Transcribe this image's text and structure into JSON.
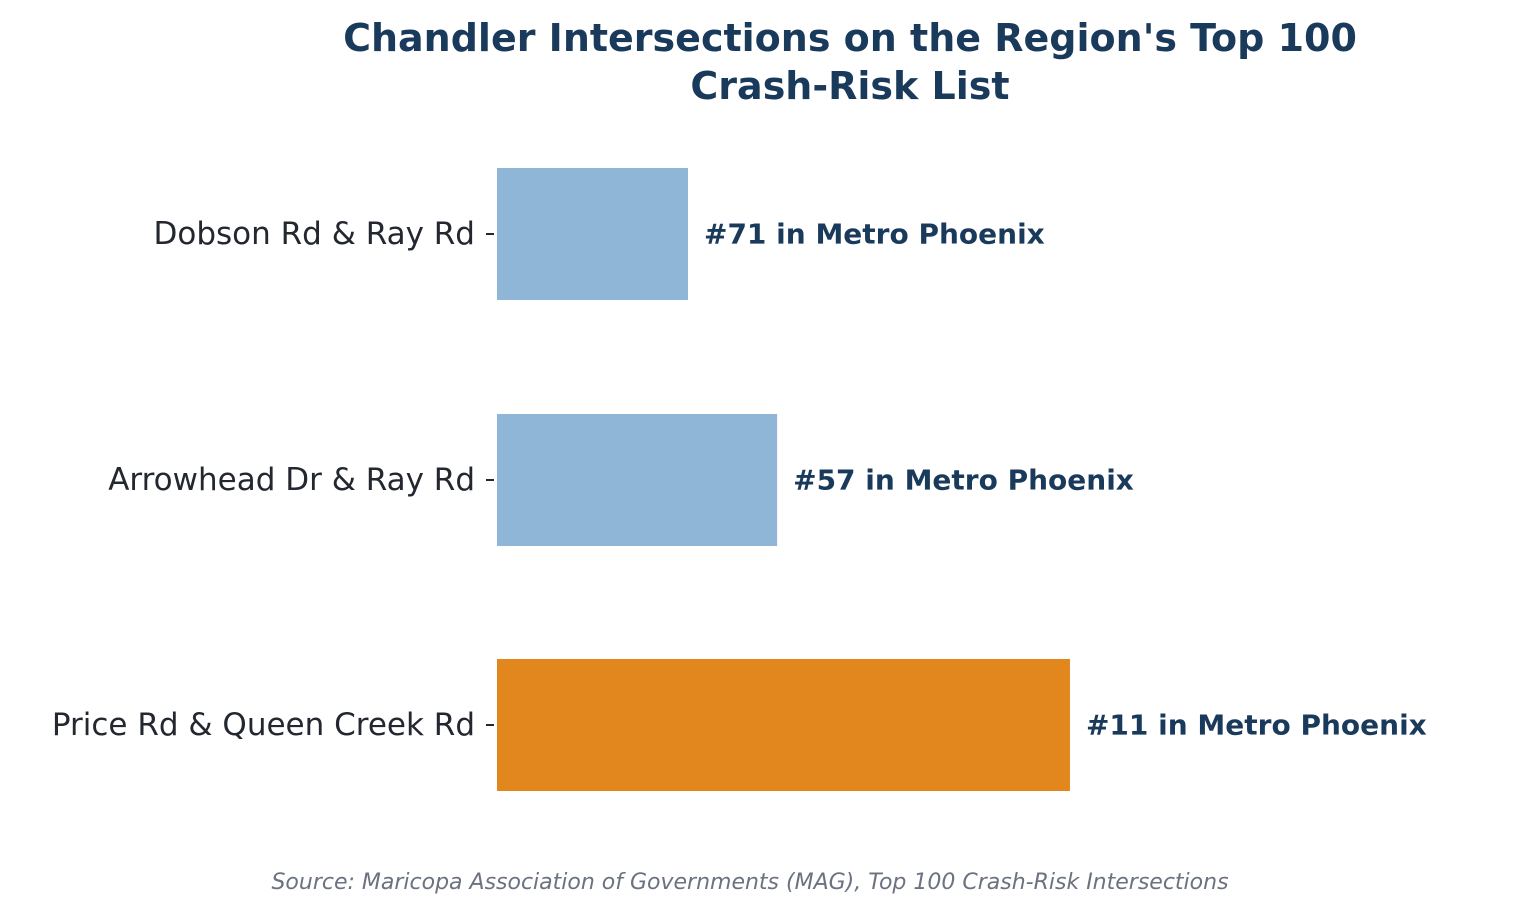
{
  "chart_data": {
    "type": "bar",
    "orientation": "horizontal",
    "title_lines": [
      "Chandler Intersections on the Region's Top 100",
      "Crash-Risk List"
    ],
    "categories": [
      "Dobson Rd & Ray Rd",
      "Arrowhead Dr & Ray Rd",
      "Price Rd & Queen Creek Rd"
    ],
    "values": [
      71,
      57,
      11
    ],
    "bar_lengths": [
      30,
      44,
      90
    ],
    "data_labels": [
      "#71 in Metro Phoenix",
      "#57 in Metro Phoenix",
      "#11 in Metro Phoenix"
    ],
    "xlim": [
      0,
      101
    ],
    "grid": false,
    "xlabel": "",
    "ylabel": ""
  },
  "colors": {
    "bar_default": "#8fb6d6",
    "bar_highlight": "#e2871e",
    "title": "#1a3a5c",
    "data_label": "#1a3a5c",
    "tick_label": "#23272f",
    "source": "#6b7280"
  },
  "source_note": "Source: Maricopa Association of Governments (MAG), Top 100 Crash-Risk Intersections"
}
